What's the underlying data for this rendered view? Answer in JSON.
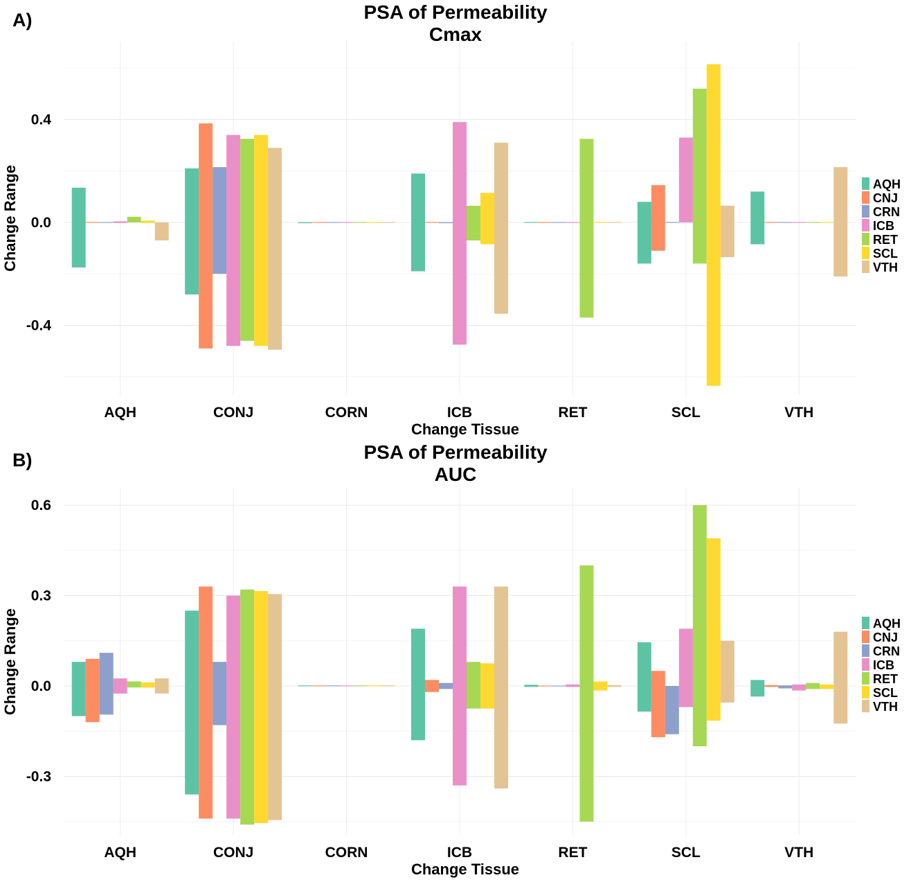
{
  "palette": {
    "AQH": "#5CC4A5",
    "CNJ": "#FC8D62",
    "CRN": "#8DA0CB",
    "ICB": "#EB8FC8",
    "RET": "#A6D854",
    "SCL": "#FFD92F",
    "VTH": "#E5C494"
  },
  "chart_data": [
    {
      "panel_label": "A)",
      "type": "bar",
      "title": "PSA of Permeability",
      "subtitle": "Cmax",
      "xlabel": "Change Tissue",
      "ylabel": "Change Range",
      "categories": [
        "AQH",
        "CONJ",
        "CORN",
        "ICB",
        "RET",
        "SCL",
        "VTH"
      ],
      "yticks": [
        -0.4,
        0.0,
        0.4
      ],
      "ytick_labels": [
        "-0.4",
        "0.0",
        "0.4"
      ],
      "ylim": [
        -0.65,
        0.65
      ],
      "grid": true,
      "legend": {
        "position": "right",
        "entries": [
          "AQH",
          "CNJ",
          "CRN",
          "ICB",
          "RET",
          "SCL",
          "VTH"
        ]
      },
      "series": [
        {
          "name": "AQH",
          "ranges": [
            [
              -0.175,
              0.135
            ],
            [
              -0.28,
              0.21
            ],
            [
              -0.003,
              0.001
            ],
            [
              -0.19,
              0.19
            ],
            [
              -0.001,
              0.001
            ],
            [
              -0.16,
              0.08
            ],
            [
              -0.085,
              0.12
            ]
          ]
        },
        {
          "name": "CNJ",
          "ranges": [
            [
              -0.001,
              0.001
            ],
            [
              -0.49,
              0.385
            ],
            [
              -0.001,
              0.001
            ],
            [
              -0.001,
              0.001
            ],
            [
              -0.001,
              0.001
            ],
            [
              -0.11,
              0.145
            ],
            [
              -0.001,
              0.001
            ]
          ]
        },
        {
          "name": "CRN",
          "ranges": [
            [
              -0.001,
              0.001
            ],
            [
              -0.2,
              0.215
            ],
            [
              -0.001,
              0.001
            ],
            [
              -0.003,
              0.001
            ],
            [
              -0.001,
              0.001
            ],
            [
              -0.001,
              0.001
            ],
            [
              -0.001,
              0.001
            ]
          ]
        },
        {
          "name": "ICB",
          "ranges": [
            [
              -0.002,
              0.004
            ],
            [
              -0.48,
              0.34
            ],
            [
              -0.001,
              0.001
            ],
            [
              -0.475,
              0.39
            ],
            [
              -0.001,
              0.001
            ],
            [
              0.0,
              0.33
            ],
            [
              -0.001,
              0.001
            ]
          ]
        },
        {
          "name": "RET",
          "ranges": [
            [
              0.0,
              0.022
            ],
            [
              -0.46,
              0.325
            ],
            [
              -0.001,
              0.001
            ],
            [
              -0.07,
              0.065
            ],
            [
              -0.37,
              0.325
            ],
            [
              -0.16,
              0.52
            ],
            [
              -0.001,
              0.001
            ]
          ]
        },
        {
          "name": "SCL",
          "ranges": [
            [
              -0.002,
              0.007
            ],
            [
              -0.48,
              0.34
            ],
            [
              -0.001,
              0.001
            ],
            [
              -0.085,
              0.115
            ],
            [
              -0.001,
              0.001
            ],
            [
              -0.635,
              0.615
            ],
            [
              -0.001,
              0.001
            ]
          ]
        },
        {
          "name": "VTH",
          "ranges": [
            [
              -0.07,
              0.0
            ],
            [
              -0.495,
              0.29
            ],
            [
              -0.001,
              0.001
            ],
            [
              -0.355,
              0.31
            ],
            [
              -0.001,
              0.001
            ],
            [
              -0.135,
              0.065
            ],
            [
              -0.21,
              0.215
            ]
          ]
        }
      ]
    },
    {
      "panel_label": "B)",
      "type": "bar",
      "title": "PSA of Permeability",
      "subtitle": "AUC",
      "xlabel": "Change Tissue",
      "ylabel": "Change Range",
      "categories": [
        "AQH",
        "CONJ",
        "CORN",
        "ICB",
        "RET",
        "SCL",
        "VTH"
      ],
      "yticks": [
        -0.3,
        0.0,
        0.3,
        0.6
      ],
      "ytick_labels": [
        "-0.3",
        "0.0",
        "0.3",
        "0.6"
      ],
      "ylim": [
        -0.45,
        0.62
      ],
      "grid": true,
      "legend": {
        "position": "right",
        "entries": [
          "AQH",
          "CNJ",
          "CRN",
          "ICB",
          "RET",
          "SCL",
          "VTH"
        ]
      },
      "series": [
        {
          "name": "AQH",
          "ranges": [
            [
              -0.1,
              0.08
            ],
            [
              -0.36,
              0.25
            ],
            [
              0.0,
              0.001
            ],
            [
              -0.18,
              0.19
            ],
            [
              -0.003,
              0.004
            ],
            [
              -0.085,
              0.145
            ],
            [
              -0.035,
              0.02
            ]
          ]
        },
        {
          "name": "CNJ",
          "ranges": [
            [
              -0.12,
              0.09
            ],
            [
              -0.44,
              0.33
            ],
            [
              0.0,
              0.001
            ],
            [
              -0.02,
              0.02
            ],
            [
              -0.001,
              0.001
            ],
            [
              -0.17,
              0.05
            ],
            [
              -0.003,
              0.003
            ]
          ]
        },
        {
          "name": "CRN",
          "ranges": [
            [
              -0.095,
              0.11
            ],
            [
              -0.13,
              0.08
            ],
            [
              0.0,
              0.001
            ],
            [
              -0.01,
              0.01
            ],
            [
              -0.001,
              0.001
            ],
            [
              -0.16,
              0.0
            ],
            [
              -0.008,
              0.002
            ]
          ]
        },
        {
          "name": "ICB",
          "ranges": [
            [
              -0.025,
              0.025
            ],
            [
              -0.44,
              0.3
            ],
            [
              0.0,
              0.001
            ],
            [
              -0.33,
              0.33
            ],
            [
              -0.003,
              0.005
            ],
            [
              -0.07,
              0.19
            ],
            [
              -0.015,
              0.005
            ]
          ]
        },
        {
          "name": "RET",
          "ranges": [
            [
              -0.005,
              0.015
            ],
            [
              -0.46,
              0.32
            ],
            [
              0.0,
              0.001
            ],
            [
              -0.075,
              0.08
            ],
            [
              -0.45,
              0.4
            ],
            [
              -0.2,
              0.6
            ],
            [
              -0.01,
              0.01
            ]
          ]
        },
        {
          "name": "SCL",
          "ranges": [
            [
              -0.005,
              0.012
            ],
            [
              -0.455,
              0.315
            ],
            [
              0.0,
              0.001
            ],
            [
              -0.075,
              0.075
            ],
            [
              -0.015,
              0.015
            ],
            [
              -0.115,
              0.49
            ],
            [
              -0.01,
              0.005
            ]
          ]
        },
        {
          "name": "VTH",
          "ranges": [
            [
              -0.025,
              0.025
            ],
            [
              -0.445,
              0.305
            ],
            [
              0.0,
              0.001
            ],
            [
              -0.34,
              0.33
            ],
            [
              -0.003,
              0.003
            ],
            [
              -0.055,
              0.15
            ],
            [
              -0.125,
              0.18
            ]
          ]
        }
      ]
    }
  ]
}
